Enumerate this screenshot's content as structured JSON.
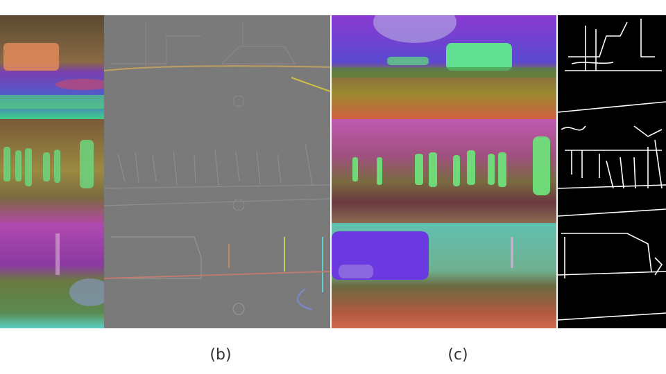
{
  "captions": {
    "b": "(b)",
    "c": "(c)"
  },
  "colors": {
    "background": "#ffffff",
    "feature_gray": "#7a7a7a",
    "edge_black": "#000000",
    "edge_white": "#ffffff"
  }
}
